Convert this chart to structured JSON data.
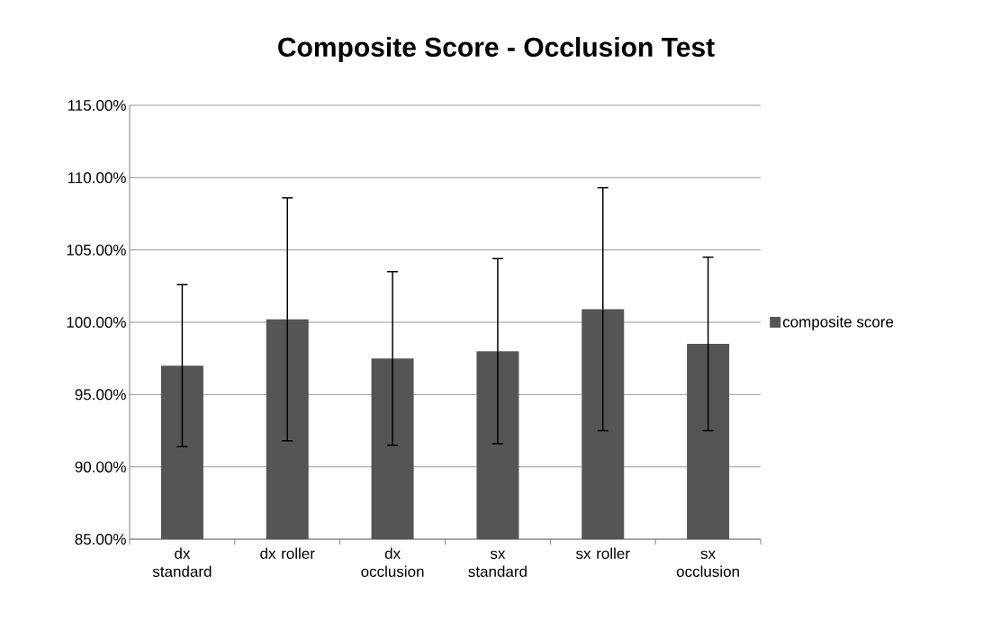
{
  "chart_data": {
    "type": "bar",
    "title": "Composite Score - Occlusion Test",
    "categories": [
      "dx standard",
      "dx roller",
      "dx occlusion",
      "sx standard",
      "sx roller",
      "sx occlusion"
    ],
    "series": [
      {
        "name": "composite score",
        "color": "#555555",
        "values": [
          97.0,
          100.2,
          97.5,
          98.0,
          100.9,
          98.5
        ],
        "errors": [
          5.6,
          8.4,
          6.0,
          6.4,
          8.4,
          6.0
        ]
      }
    ],
    "ylim": [
      85,
      115
    ],
    "yticks": [
      {
        "value": 85,
        "label": "85.00%"
      },
      {
        "value": 90,
        "label": "90.00%"
      },
      {
        "value": 95,
        "label": "95.00%"
      },
      {
        "value": 100,
        "label": "100.00%"
      },
      {
        "value": 105,
        "label": "105.00%"
      },
      {
        "value": 110,
        "label": "110.00%"
      },
      {
        "value": 115,
        "label": "115.00%"
      }
    ],
    "grid": "y",
    "legend": "right"
  }
}
